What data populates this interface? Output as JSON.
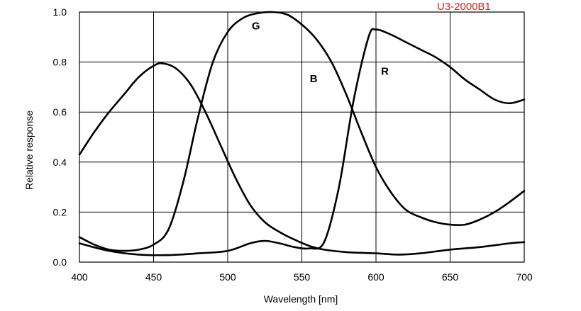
{
  "chart_data": {
    "type": "line",
    "title": "",
    "model_label": "U3-2000B1",
    "xlabel": "Wavelength [nm]",
    "ylabel": "Relative response",
    "xlim": [
      400,
      700
    ],
    "ylim": [
      0,
      1
    ],
    "x_ticks": [
      400,
      450,
      500,
      550,
      600,
      650,
      700
    ],
    "y_ticks": [
      0.0,
      0.2,
      0.4,
      0.6,
      0.8,
      1.0
    ],
    "x_tick_labels": [
      "400",
      "450",
      "500",
      "550",
      "600",
      "650",
      "700"
    ],
    "y_tick_labels": [
      "0.0",
      "0.2",
      "0.4",
      "0.6",
      "0.8",
      "1.0"
    ],
    "grid": true,
    "legend": "inline labels",
    "series": [
      {
        "name": "B",
        "label_at": [
          558,
          0.72
        ],
        "points": [
          [
            400,
            0.43
          ],
          [
            410,
            0.52
          ],
          [
            420,
            0.6
          ],
          [
            430,
            0.67
          ],
          [
            440,
            0.74
          ],
          [
            450,
            0.785
          ],
          [
            456,
            0.795
          ],
          [
            465,
            0.775
          ],
          [
            475,
            0.71
          ],
          [
            485,
            0.6
          ],
          [
            495,
            0.47
          ],
          [
            505,
            0.34
          ],
          [
            515,
            0.23
          ],
          [
            525,
            0.16
          ],
          [
            535,
            0.12
          ],
          [
            545,
            0.09
          ],
          [
            555,
            0.065
          ],
          [
            565,
            0.05
          ],
          [
            580,
            0.04
          ],
          [
            600,
            0.035
          ],
          [
            615,
            0.03
          ],
          [
            630,
            0.035
          ],
          [
            650,
            0.05
          ],
          [
            670,
            0.06
          ],
          [
            690,
            0.075
          ],
          [
            700,
            0.08
          ]
        ]
      },
      {
        "name": "G",
        "label_at": [
          519,
          0.93
        ],
        "points": [
          [
            400,
            0.1
          ],
          [
            410,
            0.07
          ],
          [
            420,
            0.05
          ],
          [
            430,
            0.045
          ],
          [
            440,
            0.05
          ],
          [
            450,
            0.07
          ],
          [
            460,
            0.13
          ],
          [
            470,
            0.32
          ],
          [
            480,
            0.58
          ],
          [
            490,
            0.8
          ],
          [
            500,
            0.92
          ],
          [
            510,
            0.975
          ],
          [
            520,
            0.995
          ],
          [
            530,
            1.0
          ],
          [
            540,
            0.99
          ],
          [
            550,
            0.95
          ],
          [
            560,
            0.89
          ],
          [
            570,
            0.8
          ],
          [
            580,
            0.67
          ],
          [
            590,
            0.52
          ],
          [
            600,
            0.38
          ],
          [
            610,
            0.28
          ],
          [
            620,
            0.21
          ],
          [
            630,
            0.18
          ],
          [
            640,
            0.16
          ],
          [
            650,
            0.15
          ],
          [
            660,
            0.15
          ],
          [
            670,
            0.17
          ],
          [
            680,
            0.2
          ],
          [
            690,
            0.24
          ],
          [
            700,
            0.285
          ]
        ]
      },
      {
        "name": "R",
        "label_at": [
          606,
          0.75
        ],
        "points": [
          [
            400,
            0.075
          ],
          [
            420,
            0.045
          ],
          [
            440,
            0.03
          ],
          [
            460,
            0.028
          ],
          [
            480,
            0.035
          ],
          [
            500,
            0.045
          ],
          [
            515,
            0.075
          ],
          [
            525,
            0.085
          ],
          [
            535,
            0.075
          ],
          [
            545,
            0.06
          ],
          [
            555,
            0.055
          ],
          [
            565,
            0.08
          ],
          [
            575,
            0.3
          ],
          [
            585,
            0.65
          ],
          [
            595,
            0.9
          ],
          [
            600,
            0.93
          ],
          [
            610,
            0.91
          ],
          [
            620,
            0.88
          ],
          [
            630,
            0.85
          ],
          [
            640,
            0.82
          ],
          [
            650,
            0.78
          ],
          [
            660,
            0.73
          ],
          [
            670,
            0.69
          ],
          [
            680,
            0.65
          ],
          [
            690,
            0.635
          ],
          [
            700,
            0.65
          ]
        ]
      }
    ]
  }
}
